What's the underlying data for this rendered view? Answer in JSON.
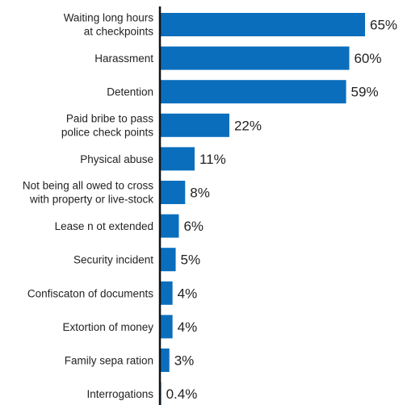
{
  "chart_data": {
    "type": "bar",
    "orientation": "horizontal",
    "title": "",
    "xlabel": "",
    "ylabel": "",
    "xlim": [
      0,
      65
    ],
    "grid": false,
    "legend": "none",
    "bar_color": "#0a6ebd",
    "categories": [
      [
        "Waiting long hours",
        "at checkpoints"
      ],
      [
        "Harassment"
      ],
      [
        "Detention"
      ],
      [
        "Paid bribe  to pass",
        "police check points"
      ],
      [
        "Physical abuse"
      ],
      [
        "Not being all owed to cross",
        "with property or live-stock"
      ],
      [
        "Lease n ot extended"
      ],
      [
        "Security incident"
      ],
      [
        "Confiscaton  of documents"
      ],
      [
        "Extortion of money"
      ],
      [
        "Family sepa ration"
      ],
      [
        "Interrogations"
      ]
    ],
    "values": [
      65,
      60,
      59,
      22,
      11,
      8,
      6,
      5,
      4,
      4,
      3,
      0.4
    ],
    "value_labels": [
      "65%",
      "60%",
      "59%",
      "22%",
      "11%",
      "8%",
      "6%",
      "5%",
      "4%",
      "4%",
      "3%",
      "0.4%"
    ]
  }
}
